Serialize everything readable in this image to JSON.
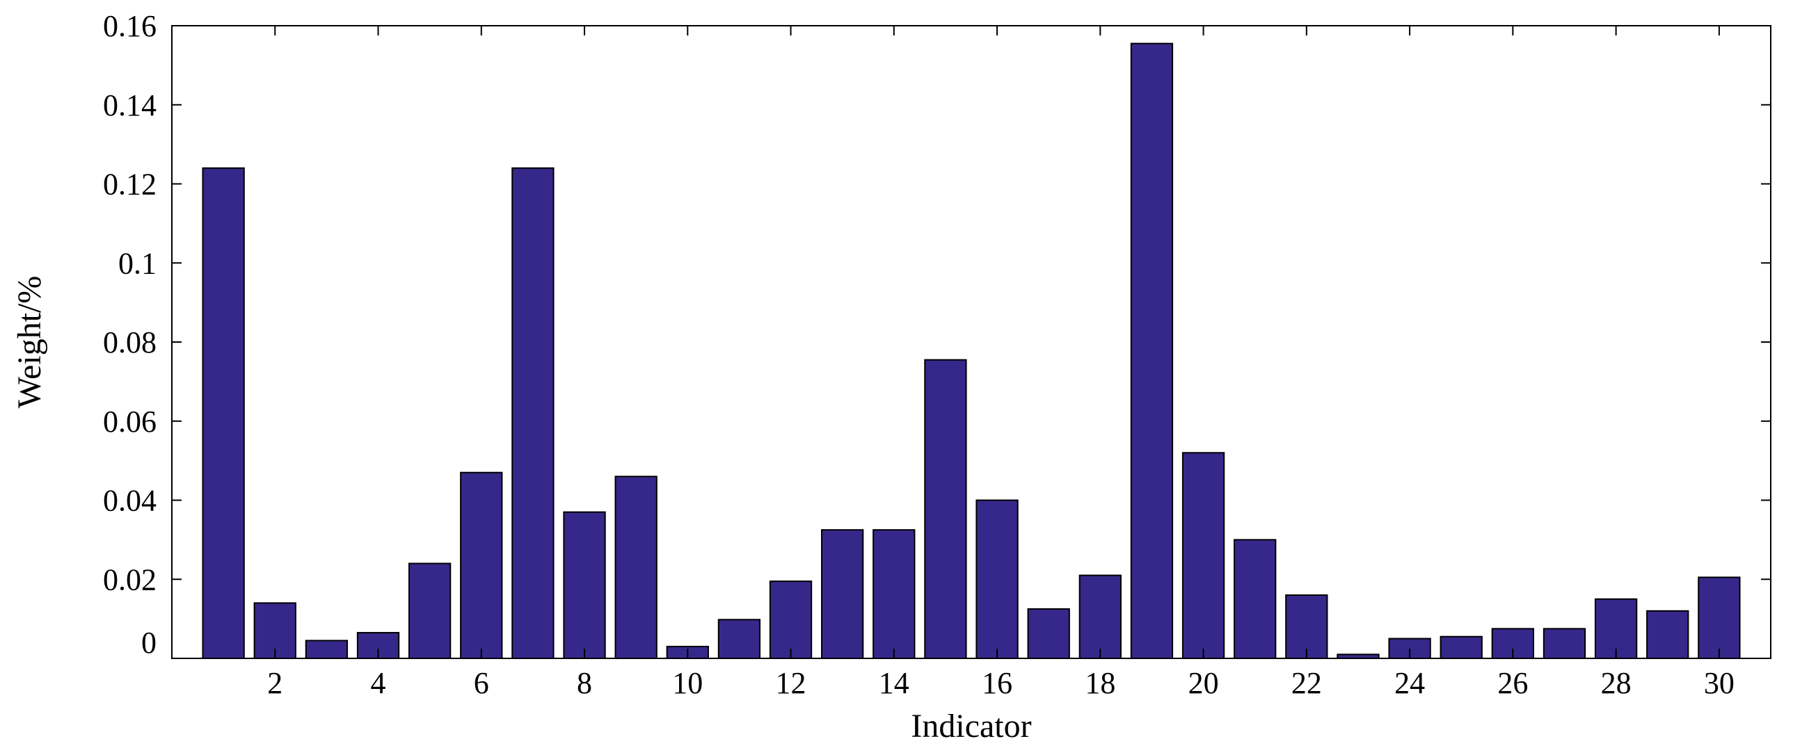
{
  "chart_data": {
    "type": "bar",
    "title": "",
    "xlabel": "Indicator",
    "ylabel": "Weight/%",
    "categories": [
      1,
      2,
      3,
      4,
      5,
      6,
      7,
      8,
      9,
      10,
      11,
      12,
      13,
      14,
      15,
      16,
      17,
      18,
      19,
      20,
      21,
      22,
      23,
      24,
      25,
      26,
      27,
      28,
      29,
      30
    ],
    "values": [
      0.124,
      0.014,
      0.0045,
      0.0065,
      0.024,
      0.047,
      0.124,
      0.037,
      0.046,
      0.003,
      0.0098,
      0.0195,
      0.0325,
      0.0325,
      0.0755,
      0.04,
      0.0125,
      0.021,
      0.1555,
      0.052,
      0.03,
      0.016,
      0.001,
      0.005,
      0.0055,
      0.0075,
      0.0075,
      0.015,
      0.012,
      0.0205
    ],
    "xlim": [
      0,
      31
    ],
    "ylim": [
      0,
      0.16
    ],
    "xticks": [
      2,
      4,
      6,
      8,
      10,
      12,
      14,
      16,
      18,
      20,
      22,
      24,
      26,
      28,
      30
    ],
    "yticks": [
      0,
      0.02,
      0.04,
      0.06,
      0.08,
      0.1,
      0.12,
      0.14,
      0.16
    ],
    "ytick_labels": [
      "0",
      "0.02",
      "0.04",
      "0.06",
      "0.08",
      "0.1",
      "0.12",
      "0.14",
      "0.16"
    ],
    "bar_color": "#36288a",
    "grid": false,
    "legend": "none"
  }
}
